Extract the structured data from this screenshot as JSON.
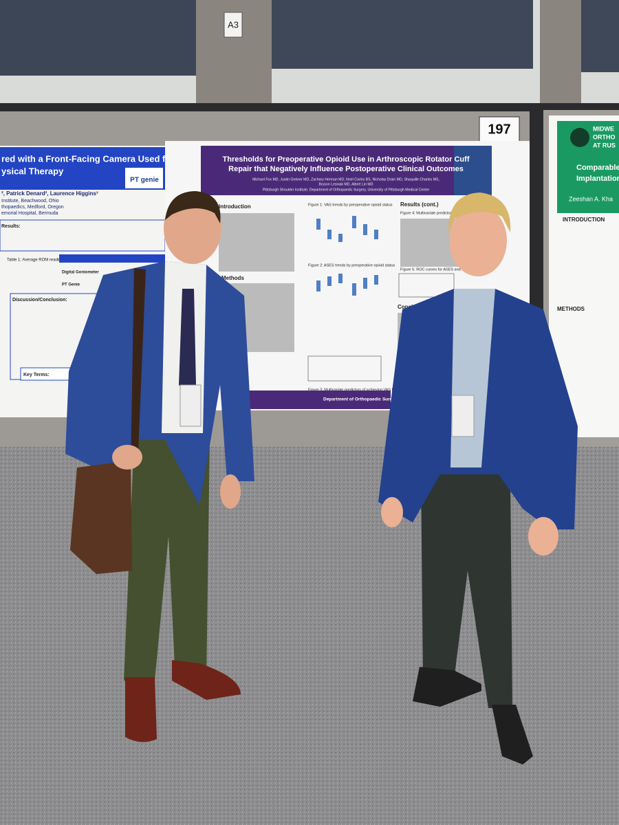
{
  "signs": {
    "aisle": "A3",
    "board": "197"
  },
  "center_poster": {
    "title_lines": [
      "Thresholds for Preoperative Opioid Use in Arthroscopic Rotator Cuff",
      "Repair that Negatively Influence Postoperative Clinical Outcomes"
    ],
    "author_lines": [
      "Michael Fox MD, Justin Greiner MD, Zachary Herman MD, Noel Carlos BS, Nicholas Drain MD, Shaquille Charles MS,",
      "Bryson Lesniak MD, Albert Lin MD"
    ],
    "affiliation": "Pittsburgh Shoulder Institute, Department of Orthopaedic Surgery, University of Pittsburgh Medical Center",
    "headings": [
      "Introduction",
      "Methods",
      "Results (cont.)",
      "Conclusion"
    ],
    "figures": [
      "Figure 1: VAS trends by preoperative opioid status",
      "Figure 2: ASES trends by preoperative opioid status",
      "Figure 3: Multivariate predictors of achieving VAS PASS",
      "Figure 4: Multivariate predictors of achi",
      "Figure 5: ROC curves for ASES and VAS"
    ],
    "footer": "Department of Orthopaedic Surgery"
  },
  "left_poster": {
    "title_lines": [
      "red with a Front-Facing Camera Used for",
      "ysical Therapy"
    ],
    "author_line": "², Patrick Denard², Laurence Higgins³",
    "affiliation_lines": [
      "Institute, Beachwood, Ohio",
      "thopaedics, Medford, Oregon",
      "emorial Hospital, Bermuda"
    ],
    "logo": "PT genie",
    "results": "Results:",
    "table_caption": "Table 1: Average ROM readings",
    "table_rows": [
      "Digital Goniometer",
      "PT Genie"
    ],
    "discussion": "Discussion/Conclusion:",
    "key_terms": "Key Terms:"
  },
  "right_poster": {
    "org_lines": [
      "MIDWE",
      "ORTHO",
      "AT RUS"
    ],
    "title_lines": [
      "Comparable S",
      "Implantation"
    ],
    "author": "Zeeshan A. Kha",
    "headings": [
      "INTRODUCTION",
      "METHODS"
    ]
  }
}
